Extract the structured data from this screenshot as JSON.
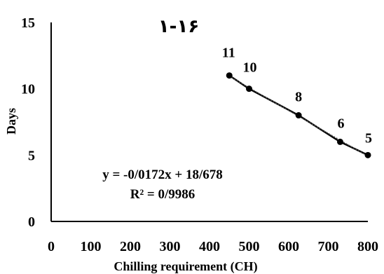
{
  "chart_data": {
    "type": "scatter",
    "title": "۱-۱۶",
    "xlabel": "Chilling requirement (CH)",
    "ylabel": "Days",
    "xlim": [
      0,
      800
    ],
    "ylim": [
      0,
      15
    ],
    "xticks": [
      "0",
      "100",
      "200",
      "300",
      "400",
      "500",
      "600",
      "700",
      "800"
    ],
    "yticks": [
      "0",
      "5",
      "10",
      "15"
    ],
    "grid": false,
    "series": [
      {
        "points": [
          {
            "x": 450,
            "y": 11,
            "label": "11"
          },
          {
            "x": 500,
            "y": 10,
            "label": "10"
          },
          {
            "x": 625,
            "y": 8,
            "label": "8"
          },
          {
            "x": 730,
            "y": 6,
            "label": "6"
          },
          {
            "x": 800,
            "y": 5,
            "label": "5"
          }
        ]
      }
    ],
    "trendline": {
      "equation": "y = -0/0172x + 18/678",
      "r_squared": "R² = 0/9986",
      "slope": -0.0172,
      "intercept": 18.678
    }
  }
}
